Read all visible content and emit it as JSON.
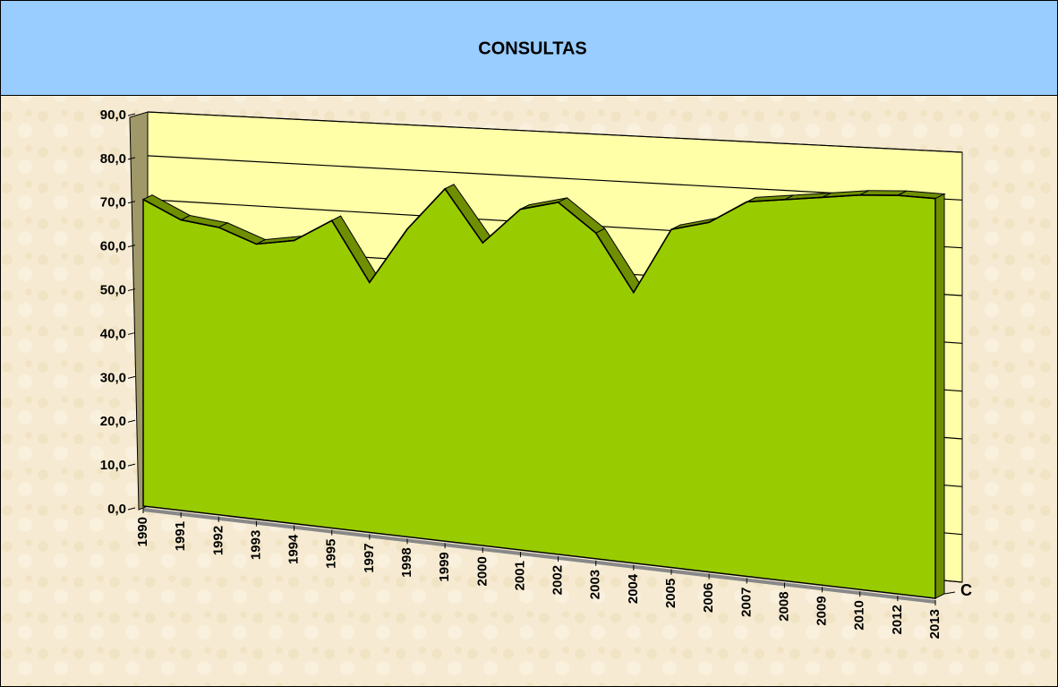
{
  "chart_data": {
    "type": "area3d",
    "title": "CONSULTAS",
    "categories": [
      "1990",
      "1991",
      "1992",
      "1993",
      "1994",
      "1995",
      "1997",
      "1998",
      "1999",
      "2000",
      "2001",
      "2002",
      "2003",
      "2004",
      "2005",
      "2006",
      "2007",
      "2008",
      "2009",
      "2010",
      "2012",
      "2013"
    ],
    "series": [
      {
        "name": "C",
        "color": "#99cc00",
        "values": [
          70,
          65.5,
          64,
          60.5,
          61.5,
          66,
          53,
          64.5,
          73,
          62,
          69,
          70.5,
          64.5,
          53,
          65.5,
          67,
          71,
          71.5,
          72,
          72.5,
          72.5,
          72
        ]
      }
    ],
    "ylim": [
      0,
      90
    ],
    "yticks": [
      {
        "value": 0,
        "label": "0,0"
      },
      {
        "value": 10,
        "label": "10,0"
      },
      {
        "value": 20,
        "label": "20,0"
      },
      {
        "value": 30,
        "label": "30,0"
      },
      {
        "value": 40,
        "label": "40,0"
      },
      {
        "value": 50,
        "label": "50,0"
      },
      {
        "value": 60,
        "label": "60,0"
      },
      {
        "value": 70,
        "label": "70,0"
      },
      {
        "value": 80,
        "label": "80,0"
      },
      {
        "value": 90,
        "label": "90,0"
      }
    ],
    "grid": true
  }
}
